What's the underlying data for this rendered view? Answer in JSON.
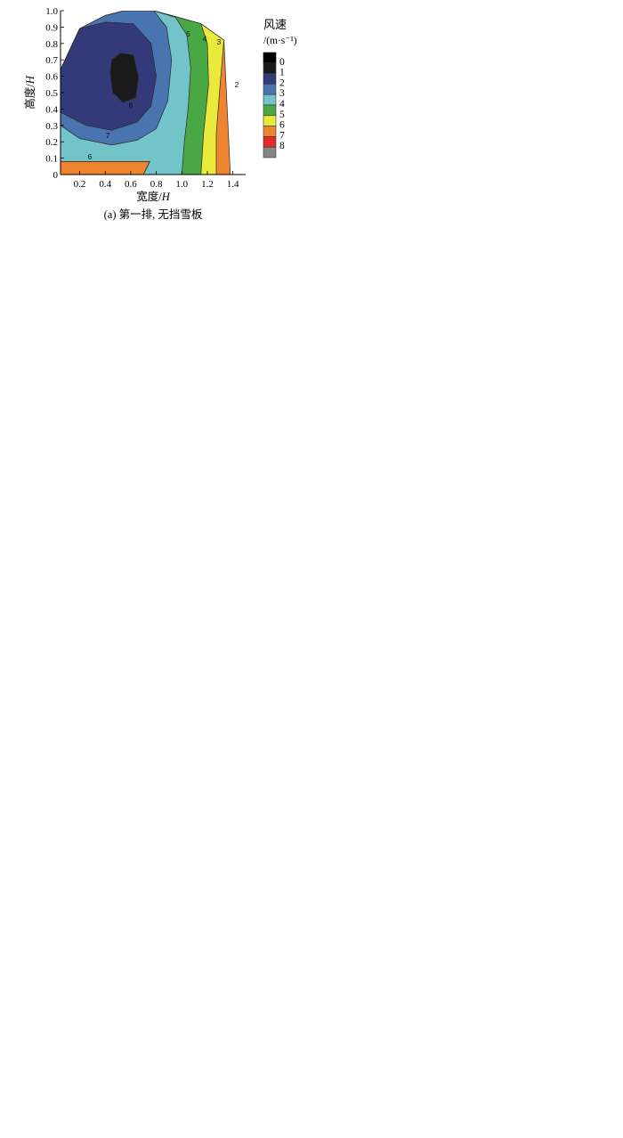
{
  "colors": {
    "levels": {
      "0": "#1a1a1a",
      "1": "#323a7a",
      "2": "#4a74b0",
      "3": "#72c4c8",
      "4": "#4aa844",
      "5": "#eaea3c",
      "6": "#ee8430",
      "7": "#e22a26",
      "8": "#858585"
    },
    "row5_level3": "#84b46c",
    "line": "#2a2a2a"
  },
  "chart_data": [
    {
      "type": "contour",
      "caption": "(a) 第一排, 无挡雪板",
      "xlabel": "宽度/H",
      "ylabel": "高度/H",
      "xticks": [
        "0.2",
        "0.4",
        "0.6",
        "0.8",
        "1.0",
        "1.2",
        "1.4"
      ],
      "yticks": [
        "0",
        "0.1",
        "0.2",
        "0.3",
        "0.4",
        "0.5",
        "0.6",
        "0.7",
        "0.8",
        "0.9",
        "1.0"
      ],
      "xlim": [
        0.05,
        1.5
      ],
      "ylim": [
        0,
        1.0
      ],
      "legend_title": "风速",
      "legend_unit": "/(m·s⁻¹)",
      "legend_levels": [
        "0",
        "1",
        "2",
        "3",
        "4",
        "5",
        "6",
        "7",
        "8"
      ],
      "levels": [
        {
          "v": "6",
          "pts": [
            [
              0.05,
              0.64
            ],
            [
              0.2,
              0.89
            ],
            [
              0.4,
              0.97
            ],
            [
              0.55,
              1.0
            ],
            [
              0.78,
              1.0
            ],
            [
              0.92,
              0.97
            ],
            [
              1.15,
              0.92
            ],
            [
              1.33,
              0.82
            ],
            [
              1.38,
              0.0
            ],
            [
              0.05,
              0.0
            ]
          ]
        },
        {
          "v": "5",
          "pts": [
            [
              0.05,
              0.64
            ],
            [
              0.2,
              0.89
            ],
            [
              0.4,
              0.97
            ],
            [
              0.55,
              1.0
            ],
            [
              0.78,
              1.0
            ],
            [
              0.92,
              0.97
            ],
            [
              1.15,
              0.92
            ],
            [
              1.33,
              0.82
            ],
            [
              1.3,
              0.55
            ],
            [
              1.27,
              0.25
            ],
            [
              1.27,
              0.0
            ],
            [
              0.7,
              0.0
            ],
            [
              0.75,
              0.08
            ],
            [
              0.05,
              0.08
            ]
          ]
        },
        {
          "v": "4",
          "pts": [
            [
              0.05,
              0.64
            ],
            [
              0.2,
              0.89
            ],
            [
              0.4,
              0.97
            ],
            [
              0.55,
              1.0
            ],
            [
              0.78,
              1.0
            ],
            [
              0.92,
              0.97
            ],
            [
              1.15,
              0.92
            ],
            [
              1.2,
              0.8
            ],
            [
              1.21,
              0.55
            ],
            [
              1.17,
              0.25
            ],
            [
              1.15,
              0.0
            ],
            [
              0.7,
              0.0
            ],
            [
              0.75,
              0.08
            ],
            [
              0.05,
              0.08
            ]
          ]
        },
        {
          "v": "3",
          "pts": [
            [
              0.05,
              0.64
            ],
            [
              0.2,
              0.89
            ],
            [
              0.4,
              0.97
            ],
            [
              0.55,
              1.0
            ],
            [
              0.78,
              1.0
            ],
            [
              0.95,
              0.96
            ],
            [
              1.04,
              0.85
            ],
            [
              1.07,
              0.65
            ],
            [
              1.05,
              0.4
            ],
            [
              1.02,
              0.2
            ],
            [
              1.0,
              0.0
            ],
            [
              0.7,
              0.0
            ],
            [
              0.75,
              0.08
            ],
            [
              0.05,
              0.08
            ]
          ]
        },
        {
          "v": "2",
          "pts": [
            [
              0.05,
              0.64
            ],
            [
              0.2,
              0.89
            ],
            [
              0.4,
              0.97
            ],
            [
              0.55,
              1.0
            ],
            [
              0.78,
              1.0
            ],
            [
              0.88,
              0.9
            ],
            [
              0.92,
              0.7
            ],
            [
              0.89,
              0.45
            ],
            [
              0.8,
              0.28
            ],
            [
              0.65,
              0.21
            ],
            [
              0.45,
              0.18
            ],
            [
              0.2,
              0.22
            ],
            [
              0.05,
              0.3
            ]
          ]
        },
        {
          "v": "1",
          "pts": [
            [
              0.05,
              0.64
            ],
            [
              0.2,
              0.89
            ],
            [
              0.4,
              0.93
            ],
            [
              0.62,
              0.92
            ],
            [
              0.76,
              0.8
            ],
            [
              0.8,
              0.6
            ],
            [
              0.76,
              0.42
            ],
            [
              0.65,
              0.32
            ],
            [
              0.45,
              0.27
            ],
            [
              0.25,
              0.3
            ],
            [
              0.05,
              0.38
            ]
          ]
        },
        {
          "v": "0",
          "pts": [
            [
              0.45,
              0.7
            ],
            [
              0.52,
              0.74
            ],
            [
              0.62,
              0.73
            ],
            [
              0.66,
              0.6
            ],
            [
              0.64,
              0.47
            ],
            [
              0.54,
              0.44
            ],
            [
              0.46,
              0.5
            ],
            [
              0.44,
              0.62
            ]
          ]
        }
      ],
      "labels": [
        {
          "text": "5",
          "x": 1.05,
          "y": 0.86
        },
        {
          "text": "4",
          "x": 1.18,
          "y": 0.83
        },
        {
          "text": "3",
          "x": 1.29,
          "y": 0.81
        },
        {
          "text": "2",
          "x": 1.43,
          "y": 0.55
        },
        {
          "text": "8",
          "x": 0.6,
          "y": 0.42
        },
        {
          "text": "7",
          "x": 0.42,
          "y": 0.24
        },
        {
          "text": "6",
          "x": 0.28,
          "y": 0.11
        }
      ]
    }
  ]
}
